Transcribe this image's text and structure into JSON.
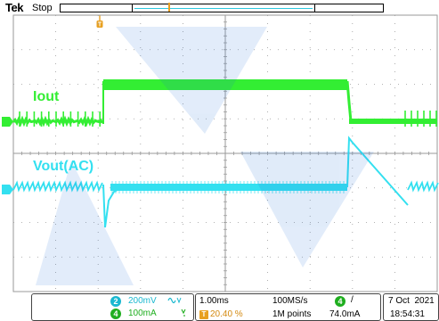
{
  "header": {
    "brand": "Tek",
    "status": "Stop"
  },
  "colors": {
    "ch4_current": "#33ee33",
    "ch2_voltage": "#33e0f0",
    "trigger": "#e8a020",
    "grid": "#9a9a9a"
  },
  "traces": {
    "iout_label": "Iout",
    "vout_label": "Vout(AC)",
    "ch4_marker": "4",
    "ch2_marker": "2"
  },
  "channels": [
    {
      "number": "2",
      "scale": "200mV",
      "coupling_icon": "ac-coupling-icon",
      "bw_icon": "bw-limit-icon"
    },
    {
      "number": "4",
      "scale": "100mA",
      "coupling_icon": "dc-coupling-icon",
      "bw_icon": "bw-limit-icon"
    }
  ],
  "timebase": {
    "time_per_div": "1.00ms",
    "sample_rate": "100MS/s",
    "trigger_position": "20.40 %",
    "record_length": "1M points",
    "trigger_icon": "T"
  },
  "trigger": {
    "source": "4",
    "slope": "/",
    "level": "74.0mA"
  },
  "datetime": {
    "date": "7 Oct  2021",
    "time": "18:54:31"
  }
}
